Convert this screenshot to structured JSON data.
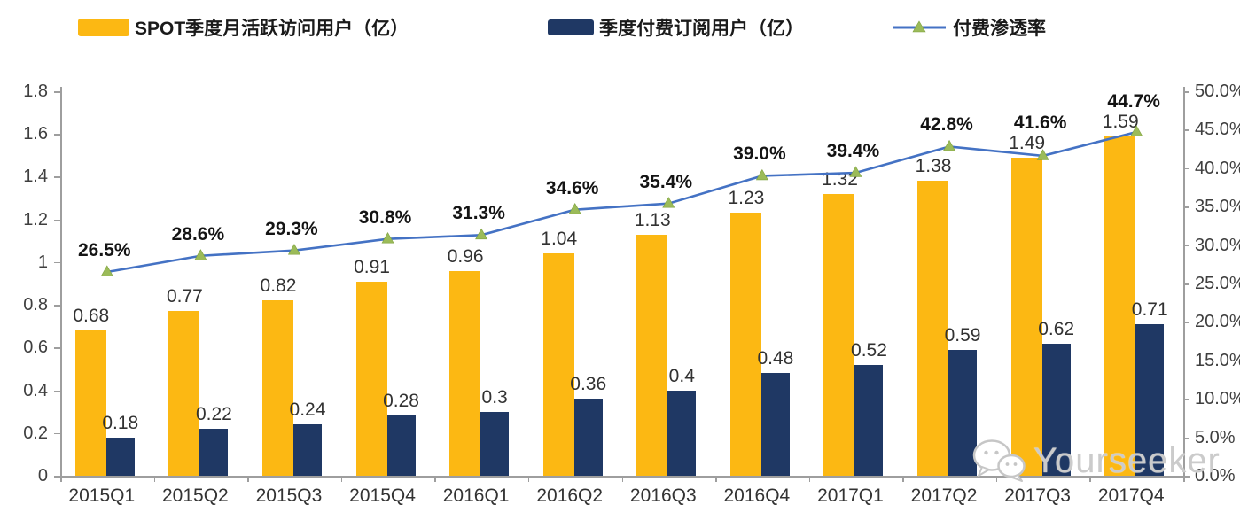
{
  "legend": {
    "items": [
      {
        "label": "SPOT季度月活跃访问用户（亿）",
        "swatch": "bar",
        "color": "#FCB813"
      },
      {
        "label": "季度付费订阅用户（亿）",
        "swatch": "bar",
        "color": "#1F3864"
      },
      {
        "label": "付费渗透率",
        "swatch": "line",
        "color": "#4472C4",
        "marker_color": "#9BBB59"
      }
    ]
  },
  "chart_data": {
    "type": "bar",
    "subtype": "grouped-bars-with-line-combo",
    "categories": [
      "2015Q1",
      "2015Q2",
      "2015Q3",
      "2015Q4",
      "2016Q1",
      "2016Q2",
      "2016Q3",
      "2016Q4",
      "2017Q1",
      "2017Q2",
      "2017Q3",
      "2017Q4"
    ],
    "series": [
      {
        "name": "SPOT季度月活跃访问用户（亿）",
        "type": "bar",
        "axis": "left",
        "color": "#FCB813",
        "values": [
          0.68,
          0.77,
          0.82,
          0.91,
          0.96,
          1.04,
          1.13,
          1.23,
          1.32,
          1.38,
          1.49,
          1.59
        ],
        "labels": [
          "0.68",
          "0.77",
          "0.82",
          "0.91",
          "0.96",
          "1.04",
          "1.13",
          "1.23",
          "1.32",
          "1.38",
          "1.49",
          "1.59"
        ]
      },
      {
        "name": "季度付费订阅用户（亿）",
        "type": "bar",
        "axis": "left",
        "color": "#1F3864",
        "values": [
          0.18,
          0.22,
          0.24,
          0.28,
          0.3,
          0.36,
          0.4,
          0.48,
          0.52,
          0.59,
          0.62,
          0.71
        ],
        "labels": [
          "0.18",
          "0.22",
          "0.24",
          "0.28",
          "0.3",
          "0.36",
          "0.4",
          "0.48",
          "0.52",
          "0.59",
          "0.62",
          "0.71"
        ]
      },
      {
        "name": "付费渗透率",
        "type": "line",
        "axis": "right",
        "color": "#4472C4",
        "marker": "triangle",
        "marker_color": "#9BBB59",
        "values": [
          26.5,
          28.6,
          29.3,
          30.8,
          31.3,
          34.6,
          35.4,
          39.0,
          39.4,
          42.8,
          41.6,
          44.7
        ],
        "labels": [
          "26.5%",
          "28.6%",
          "29.3%",
          "30.8%",
          "31.3%",
          "34.6%",
          "35.4%",
          "39.0%",
          "39.4%",
          "42.8%",
          "41.6%",
          "44.7%"
        ]
      }
    ],
    "left_axis": {
      "min": 0,
      "max": 1.8,
      "tick_labels": [
        "0",
        "0.2",
        "0.4",
        "0.6",
        "0.8",
        "1",
        "1.2",
        "1.4",
        "1.6",
        "1.8"
      ]
    },
    "right_axis": {
      "min": 0,
      "max": 50,
      "tick_labels": [
        "0.0%",
        "5.0%",
        "10.0%",
        "15.0%",
        "20.0%",
        "25.0%",
        "30.0%",
        "35.0%",
        "40.0%",
        "45.0%",
        "50.0%"
      ]
    },
    "grid": "off",
    "legend_position": "top"
  },
  "watermark": {
    "text": "Yourseeker",
    "icon": "wechat-icon"
  }
}
